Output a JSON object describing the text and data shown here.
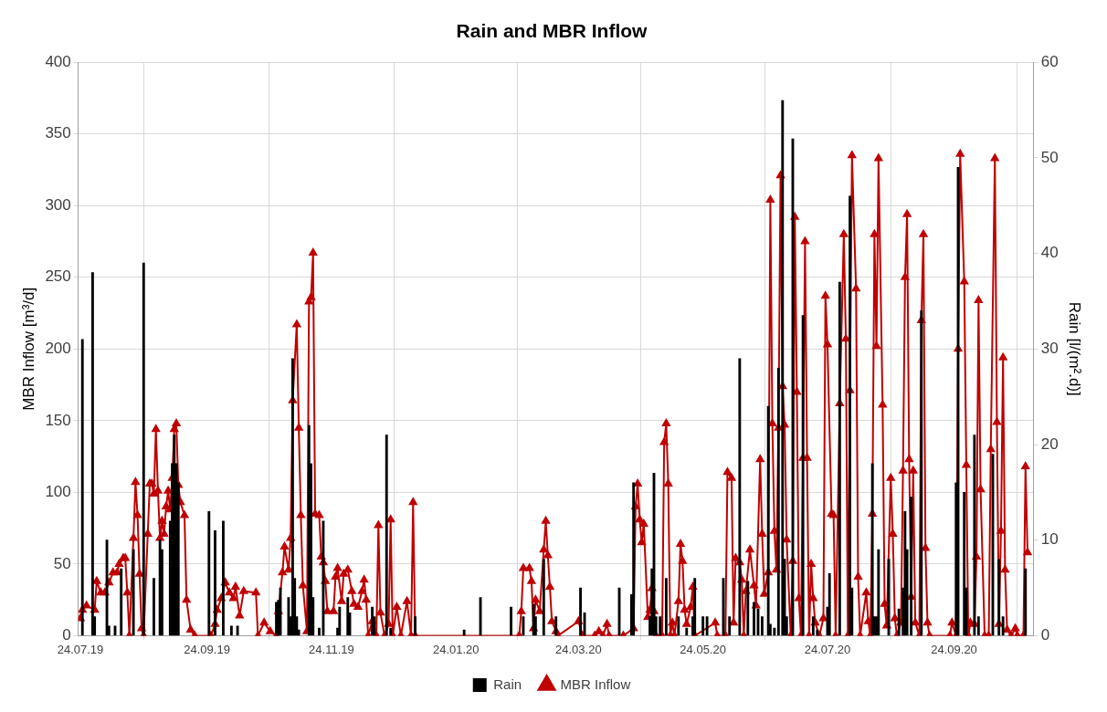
{
  "chart_data": {
    "type": "line",
    "title": "Rain and MBR Inflow",
    "ylabel": "MBR Inflow [m³/d]",
    "y2label": "Rain [l/(m².d)]",
    "xlim": [
      "2019-07-23",
      "2020-11-02"
    ],
    "xticks": [
      {
        "value": "2019-07-24",
        "label": "24.07.19"
      },
      {
        "value": "2019-09-24",
        "label": "24.09.19"
      },
      {
        "value": "2019-11-24",
        "label": "24.11.19"
      },
      {
        "value": "2020-01-24",
        "label": "24.01.20"
      },
      {
        "value": "2020-03-24",
        "label": "24.03.20"
      },
      {
        "value": "2020-05-24",
        "label": "24.05.20"
      },
      {
        "value": "2020-07-24",
        "label": "24.07.20"
      },
      {
        "value": "2020-09-24",
        "label": "24.09.20"
      }
    ],
    "ylim": [
      0,
      400
    ],
    "yticks": [
      0,
      50,
      100,
      150,
      200,
      250,
      300,
      350,
      400
    ],
    "y2lim": [
      0,
      60
    ],
    "y2ticks": [
      0,
      10,
      20,
      30,
      40,
      50,
      60
    ],
    "grid": true,
    "legend": "bottom",
    "series": [
      {
        "name": "Rain",
        "type": "bar",
        "axis": "y2",
        "color": "#000000",
        "x": [
          "2019-07-25",
          "2019-07-30",
          "2019-07-31",
          "2019-08-06",
          "2019-08-07",
          "2019-08-10",
          "2019-08-13",
          "2019-08-19",
          "2019-08-24",
          "2019-08-29",
          "2019-09-01",
          "2019-09-02",
          "2019-09-06",
          "2019-09-07",
          "2019-09-08",
          "2019-09-09",
          "2019-09-10",
          "2019-09-25",
          "2019-09-28",
          "2019-10-02",
          "2019-10-06",
          "2019-10-09",
          "2019-10-28",
          "2019-10-29",
          "2019-10-30",
          "2019-11-03",
          "2019-11-04",
          "2019-11-05",
          "2019-11-06",
          "2019-11-07",
          "2019-11-08",
          "2019-11-13",
          "2019-11-14",
          "2019-11-15",
          "2019-11-18",
          "2019-11-20",
          "2019-11-27",
          "2019-11-28",
          "2019-12-02",
          "2019-12-03",
          "2019-12-14",
          "2019-12-15",
          "2019-12-21",
          "2019-12-23",
          "2020-01-04",
          "2020-01-28",
          "2020-02-05",
          "2020-02-20",
          "2020-02-26",
          "2020-03-02",
          "2020-03-03",
          "2020-03-07",
          "2020-03-13",
          "2020-03-25",
          "2020-03-27",
          "2020-04-13",
          "2020-04-19",
          "2020-04-20",
          "2020-04-28",
          "2020-04-29",
          "2020-04-30",
          "2020-05-01",
          "2020-05-03",
          "2020-05-06",
          "2020-05-12",
          "2020-05-16",
          "2020-05-19",
          "2020-05-20",
          "2020-05-24",
          "2020-05-26",
          "2020-06-03",
          "2020-06-06",
          "2020-06-11",
          "2020-06-15",
          "2020-06-18",
          "2020-06-20",
          "2020-06-22",
          "2020-06-25",
          "2020-06-26",
          "2020-06-28",
          "2020-06-30",
          "2020-07-02",
          "2020-07-03",
          "2020-07-04",
          "2020-07-07",
          "2020-07-12",
          "2020-07-17",
          "2020-07-19",
          "2020-07-24",
          "2020-07-25",
          "2020-07-30",
          "2020-08-04",
          "2020-08-05",
          "2020-08-15",
          "2020-08-16",
          "2020-08-17",
          "2020-08-18",
          "2020-08-23",
          "2020-08-28",
          "2020-08-30",
          "2020-08-31",
          "2020-09-01",
          "2020-09-03",
          "2020-09-08",
          "2020-09-25",
          "2020-09-26",
          "2020-09-29",
          "2020-09-30",
          "2020-10-04",
          "2020-10-06",
          "2020-10-13",
          "2020-10-16",
          "2020-10-18",
          "2020-10-29"
        ],
        "values": [
          31,
          38,
          2,
          10,
          1,
          1,
          7,
          9,
          39,
          6,
          10,
          9,
          12,
          18,
          21,
          18,
          16,
          13,
          11,
          12,
          1,
          1,
          3.5,
          3.7,
          5,
          4,
          2,
          29,
          6,
          2,
          0.6,
          22,
          18,
          4,
          0.8,
          12,
          0.8,
          3,
          4,
          2.4,
          3,
          2,
          21,
          0.8,
          2,
          0.6,
          4,
          3,
          2,
          3.3,
          2,
          8,
          2,
          5,
          2.4,
          5,
          4.3,
          16,
          2,
          7,
          17,
          2,
          2,
          6,
          2,
          0.8,
          2,
          6,
          2,
          2,
          6,
          2,
          29,
          5.7,
          3.5,
          2.8,
          2,
          24,
          1.2,
          0.8,
          28,
          56,
          8,
          2,
          52,
          33.5,
          2,
          0.6,
          3,
          6.5,
          37,
          46,
          5,
          18,
          2,
          2,
          9,
          8,
          2.8,
          5,
          13,
          9,
          14.5,
          34,
          16,
          49,
          15,
          5,
          21,
          2,
          19,
          8,
          2,
          7
        ]
      },
      {
        "name": "MBR Inflow",
        "color": "#c00000",
        "marker": "triangle",
        "line_style": "solid",
        "x": [
          "2019-07-24",
          "2019-07-25",
          "2019-07-27",
          "2019-07-31",
          "2019-08-01",
          "2019-08-03",
          "2019-08-05",
          "2019-08-07",
          "2019-08-09",
          "2019-08-11",
          "2019-08-12",
          "2019-08-14",
          "2019-08-15",
          "2019-08-16",
          "2019-08-17",
          "2019-08-19",
          "2019-08-20",
          "2019-08-21",
          "2019-08-22",
          "2019-08-23",
          "2019-08-24",
          "2019-08-26",
          "2019-08-27",
          "2019-08-28",
          "2019-08-29",
          "2019-08-30",
          "2019-08-31",
          "2019-09-01",
          "2019-09-02",
          "2019-09-03",
          "2019-09-04",
          "2019-09-05",
          "2019-09-06",
          "2019-09-07",
          "2019-09-08",
          "2019-09-09",
          "2019-09-10",
          "2019-09-11",
          "2019-09-13",
          "2019-09-14",
          "2019-09-16",
          "2019-09-18",
          "2019-09-26",
          "2019-09-28",
          "2019-09-29",
          "2019-10-01",
          "2019-10-03",
          "2019-10-05",
          "2019-10-07",
          "2019-10-08",
          "2019-10-10",
          "2019-10-12",
          "2019-10-18",
          "2019-10-19",
          "2019-10-22",
          "2019-10-25",
          "2019-10-28",
          "2019-10-29",
          "2019-10-31",
          "2019-11-01",
          "2019-11-03",
          "2019-11-04",
          "2019-11-05",
          "2019-11-07",
          "2019-11-08",
          "2019-11-09",
          "2019-11-10",
          "2019-11-12",
          "2019-11-13",
          "2019-11-14",
          "2019-11-15",
          "2019-11-16",
          "2019-11-18",
          "2019-11-19",
          "2019-11-20",
          "2019-11-21",
          "2019-11-22",
          "2019-11-25",
          "2019-11-26",
          "2019-11-27",
          "2019-11-29",
          "2019-11-30",
          "2019-12-02",
          "2019-12-04",
          "2019-12-05",
          "2019-12-07",
          "2019-12-09",
          "2019-12-10",
          "2019-12-11",
          "2019-12-12",
          "2019-12-14",
          "2019-12-16",
          "2019-12-17",
          "2019-12-18",
          "2019-12-20",
          "2019-12-22",
          "2019-12-23",
          "2019-12-24",
          "2019-12-26",
          "2019-12-28",
          "2019-12-31",
          "2020-01-02",
          "2020-01-03",
          "2020-01-04",
          "2020-02-24",
          "2020-02-25",
          "2020-02-26",
          "2020-02-29",
          "2020-03-01",
          "2020-03-02",
          "2020-03-03",
          "2020-03-05",
          "2020-03-07",
          "2020-03-08",
          "2020-03-09",
          "2020-03-10",
          "2020-03-11",
          "2020-03-13",
          "2020-03-14",
          "2020-03-24",
          "2020-03-26",
          "2020-04-01",
          "2020-04-03",
          "2020-04-05",
          "2020-04-07",
          "2020-04-08",
          "2020-04-15",
          "2020-04-20",
          "2020-04-21",
          "2020-04-22",
          "2020-04-23",
          "2020-04-24",
          "2020-04-25",
          "2020-04-27",
          "2020-04-28",
          "2020-04-29",
          "2020-04-30",
          "2020-05-01",
          "2020-05-04",
          "2020-05-05",
          "2020-05-06",
          "2020-05-07",
          "2020-05-08",
          "2020-05-09",
          "2020-05-10",
          "2020-05-12",
          "2020-05-13",
          "2020-05-14",
          "2020-05-15",
          "2020-05-16",
          "2020-05-18",
          "2020-05-19",
          "2020-05-20",
          "2020-05-30",
          "2020-05-31",
          "2020-06-04",
          "2020-06-05",
          "2020-06-07",
          "2020-06-08",
          "2020-06-09",
          "2020-06-11",
          "2020-06-12",
          "2020-06-13",
          "2020-06-14",
          "2020-06-16",
          "2020-06-18",
          "2020-06-19",
          "2020-06-21",
          "2020-06-22",
          "2020-06-23",
          "2020-06-25",
          "2020-06-26",
          "2020-06-27",
          "2020-06-28",
          "2020-06-29",
          "2020-06-30",
          "2020-07-01",
          "2020-07-02",
          "2020-07-03",
          "2020-07-04",
          "2020-07-06",
          "2020-07-07",
          "2020-07-08",
          "2020-07-09",
          "2020-07-10",
          "2020-07-11",
          "2020-07-12",
          "2020-07-13",
          "2020-07-14",
          "2020-07-15",
          "2020-07-16",
          "2020-07-17",
          "2020-07-18",
          "2020-07-20",
          "2020-07-22",
          "2020-07-23",
          "2020-07-24",
          "2020-07-26",
          "2020-07-27",
          "2020-07-28",
          "2020-07-30",
          "2020-08-01",
          "2020-08-02",
          "2020-08-03",
          "2020-08-04",
          "2020-08-05",
          "2020-08-07",
          "2020-08-08",
          "2020-08-09",
          "2020-08-12",
          "2020-08-13",
          "2020-08-14",
          "2020-08-15",
          "2020-08-16",
          "2020-08-17",
          "2020-08-18",
          "2020-08-20",
          "2020-08-21",
          "2020-08-22",
          "2020-08-24",
          "2020-08-25",
          "2020-08-26",
          "2020-08-27",
          "2020-08-29",
          "2020-08-30",
          "2020-08-31",
          "2020-09-01",
          "2020-09-02",
          "2020-09-03",
          "2020-09-04",
          "2020-09-05",
          "2020-09-07",
          "2020-09-08",
          "2020-09-09",
          "2020-09-10",
          "2020-09-11",
          "2020-09-12",
          "2020-09-22",
          "2020-09-23",
          "2020-09-25",
          "2020-09-26",
          "2020-09-27",
          "2020-09-29",
          "2020-09-30",
          "2020-10-01",
          "2020-10-02",
          "2020-10-04",
          "2020-10-05",
          "2020-10-06",
          "2020-10-07",
          "2020-10-09",
          "2020-10-11",
          "2020-10-12",
          "2020-10-14",
          "2020-10-15",
          "2020-10-16",
          "2020-10-17",
          "2020-10-18",
          "2020-10-19",
          "2020-10-20",
          "2020-10-22",
          "2020-10-24",
          "2020-10-25",
          "2020-10-28",
          "2020-10-29",
          "2020-10-30"
        ],
        "values": [
          12,
          18,
          21,
          18,
          38,
          30,
          30,
          37,
          44,
          44,
          50,
          54,
          54,
          30,
          0,
          68,
          107,
          84,
          43,
          5,
          0,
          71,
          106,
          106,
          99,
          144,
          101,
          68,
          80,
          71,
          90,
          101,
          88,
          110,
          144,
          148,
          105,
          93,
          84,
          25,
          4,
          0,
          0,
          8,
          18,
          26,
          37,
          30,
          26,
          34,
          14,
          31,
          30,
          0,
          9,
          3,
          0,
          17,
          44,
          62,
          46,
          68,
          164,
          217,
          145,
          84,
          35,
          3,
          233,
          236,
          267,
          85,
          84,
          55,
          51,
          38,
          17,
          17,
          41,
          47,
          24,
          43,
          46,
          31,
          22,
          20,
          31,
          39,
          25,
          0,
          10,
          0,
          77,
          16,
          0,
          8,
          81,
          0,
          20,
          0,
          24,
          0,
          93,
          0,
          0,
          17,
          47,
          47,
          38,
          5,
          25,
          17,
          60,
          80,
          56,
          34,
          10,
          3,
          0,
          10,
          0,
          0,
          3,
          0,
          8,
          0,
          0,
          5,
          90,
          106,
          81,
          65,
          78,
          13,
          18,
          33,
          17,
          0,
          0,
          135,
          148,
          106,
          0,
          9,
          0,
          24,
          64,
          52,
          18,
          8,
          20,
          34,
          0,
          9,
          0,
          0,
          114,
          110,
          9,
          54,
          51,
          39,
          0,
          31,
          60,
          35,
          21,
          123,
          71,
          29,
          44,
          304,
          148,
          73,
          46,
          145,
          321,
          174,
          147,
          67,
          0,
          52,
          292,
          170,
          26,
          0,
          124,
          275,
          124,
          0,
          50,
          26,
          9,
          0,
          12,
          237,
          203,
          85,
          84,
          0,
          162,
          280,
          207,
          0,
          171,
          335,
          242,
          41,
          0,
          30,
          10,
          0,
          85,
          280,
          202,
          333,
          161,
          22,
          7,
          110,
          71,
          12,
          0,
          9,
          115,
          250,
          294,
          123,
          27,
          115,
          9,
          0,
          220,
          280,
          61,
          9,
          0,
          0,
          9,
          0,
          200,
          336,
          247,
          119,
          0,
          9,
          8,
          55,
          234,
          102,
          0,
          0,
          130,
          333,
          149,
          8,
          73,
          194,
          46,
          4,
          0,
          5,
          0,
          0,
          118,
          58
        ]
      }
    ]
  }
}
